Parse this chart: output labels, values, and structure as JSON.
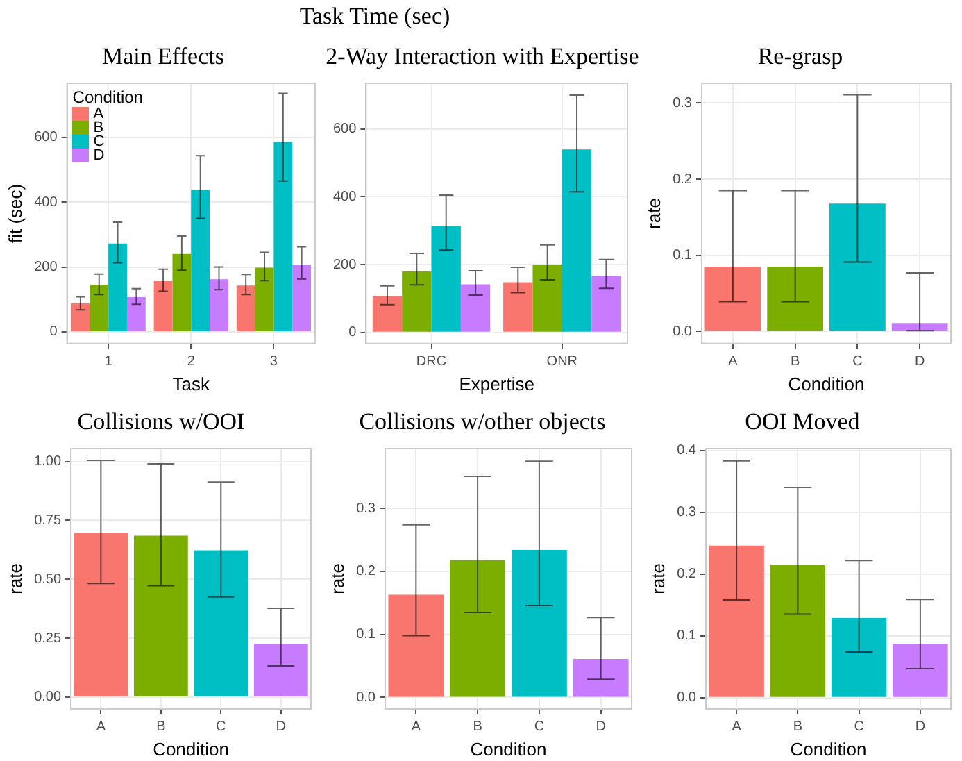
{
  "chart_data": [
    {
      "type": "bar",
      "title": "Main Effects",
      "annotations": [
        "Task Time (sec)"
      ],
      "xlabel": "Task",
      "ylabel": "fit (sec)",
      "categories": [
        "1",
        "2",
        "3"
      ],
      "series": [
        {
          "name": "A",
          "color": "#f8766d",
          "values": [
            88,
            157,
            143
          ],
          "errors": [
            [
              68,
              108
            ],
            [
              125,
              193
            ],
            [
              115,
              177
            ]
          ]
        },
        {
          "name": "B",
          "color": "#7cae00",
          "values": [
            145,
            240,
            198
          ],
          "errors": [
            [
              115,
              178
            ],
            [
              190,
              295
            ],
            [
              158,
              245
            ]
          ]
        },
        {
          "name": "C",
          "color": "#00bfc4",
          "values": [
            272,
            437,
            585
          ],
          "errors": [
            [
              213,
              338
            ],
            [
              350,
              543
            ],
            [
              465,
              735
            ]
          ]
        },
        {
          "name": "D",
          "color": "#c77cff",
          "values": [
            107,
            162,
            207
          ],
          "errors": [
            [
              85,
              133
            ],
            [
              130,
              200
            ],
            [
              163,
              262
            ]
          ]
        }
      ],
      "ylim": [
        -36,
        766
      ],
      "yticks": [
        0,
        200,
        400,
        600
      ],
      "grid": true,
      "legend": "top left",
      "legend_title": "Condition"
    },
    {
      "type": "bar",
      "title": "2-Way Interaction with Expertise",
      "xlabel": "Expertise",
      "categories": [
        "DRC",
        "ONR"
      ],
      "series": [
        {
          "color": "#f8766d",
          "values": [
            107,
            148
          ],
          "errors": [
            [
              82,
              137
            ],
            [
              117,
              192
            ]
          ]
        },
        {
          "color": "#7cae00",
          "values": [
            180,
            200
          ],
          "errors": [
            [
              140,
              233
            ],
            [
              155,
              258
            ]
          ]
        },
        {
          "color": "#00bfc4",
          "values": [
            313,
            540
          ],
          "errors": [
            [
              243,
              405
            ],
            [
              415,
              700
            ]
          ]
        },
        {
          "color": "#c77cff",
          "values": [
            142,
            166
          ],
          "errors": [
            [
              110,
              182
            ],
            [
              130,
              215
            ]
          ]
        }
      ],
      "ylim": [
        -33,
        735
      ],
      "yticks": [
        0,
        200,
        400,
        600
      ],
      "grid": true
    },
    {
      "type": "bar",
      "title": "Re-grasp",
      "xlabel": "Condition",
      "ylabel": "rate",
      "categories": [
        "A",
        "B",
        "C",
        "D"
      ],
      "values": [
        0.085,
        0.085,
        0.168,
        0.011
      ],
      "colors": [
        "#f8766d",
        "#7cae00",
        "#00bfc4",
        "#c77cff"
      ],
      "errors": [
        [
          0.039,
          0.185
        ],
        [
          0.039,
          0.185
        ],
        [
          0.091,
          0.311
        ],
        [
          0.001,
          0.077
        ]
      ],
      "ylim": [
        -0.016,
        0.326
      ],
      "yticks": [
        {
          "value": 0,
          "label": "0.0"
        },
        0.1,
        0.2,
        0.3
      ],
      "grid": true
    },
    {
      "type": "bar",
      "title": "Collisions w/OOI",
      "xlabel": "Condition",
      "ylabel": "rate",
      "categories": [
        "A",
        "B",
        "C",
        "D"
      ],
      "values": [
        0.697,
        0.685,
        0.623,
        0.225
      ],
      "colors": [
        "#f8766d",
        "#7cae00",
        "#00bfc4",
        "#c77cff"
      ],
      "errors": [
        [
          0.482,
          1.005
        ],
        [
          0.473,
          0.99
        ],
        [
          0.425,
          0.913
        ],
        [
          0.132,
          0.377
        ]
      ],
      "ylim": [
        -0.05,
        1.055
      ],
      "yticks": [
        {
          "value": 0,
          "label": "0.00"
        },
        0.25,
        {
          "value": 0.5,
          "label": "0.50"
        },
        0.75,
        {
          "value": 1,
          "label": "1.00"
        }
      ],
      "grid": true
    },
    {
      "type": "bar",
      "title": "Collisions w/other objects",
      "xlabel": "Condition",
      "ylabel": "rate",
      "categories": [
        "A",
        "B",
        "C",
        "D"
      ],
      "values": [
        0.163,
        0.218,
        0.234,
        0.061
      ],
      "colors": [
        "#f8766d",
        "#7cae00",
        "#00bfc4",
        "#c77cff"
      ],
      "errors": [
        [
          0.098,
          0.274
        ],
        [
          0.135,
          0.351
        ],
        [
          0.146,
          0.375
        ],
        [
          0.029,
          0.127
        ]
      ],
      "ylim": [
        -0.018,
        0.395
      ],
      "yticks": [
        {
          "value": 0,
          "label": "0.0"
        },
        0.1,
        0.2,
        0.3
      ],
      "grid": true
    },
    {
      "type": "bar",
      "title": "OOI Moved",
      "xlabel": "Condition",
      "ylabel": "rate",
      "categories": [
        "A",
        "B",
        "C",
        "D"
      ],
      "values": [
        0.246,
        0.215,
        0.129,
        0.087
      ],
      "colors": [
        "#f8766d",
        "#7cae00",
        "#00bfc4",
        "#c77cff"
      ],
      "errors": [
        [
          0.158,
          0.383
        ],
        [
          0.135,
          0.34
        ],
        [
          0.074,
          0.222
        ],
        [
          0.047,
          0.159
        ]
      ],
      "ylim": [
        -0.018,
        0.403
      ],
      "yticks": [
        {
          "value": 0,
          "label": "0.0"
        },
        0.1,
        0.2,
        0.3,
        0.4
      ],
      "grid": true
    }
  ]
}
